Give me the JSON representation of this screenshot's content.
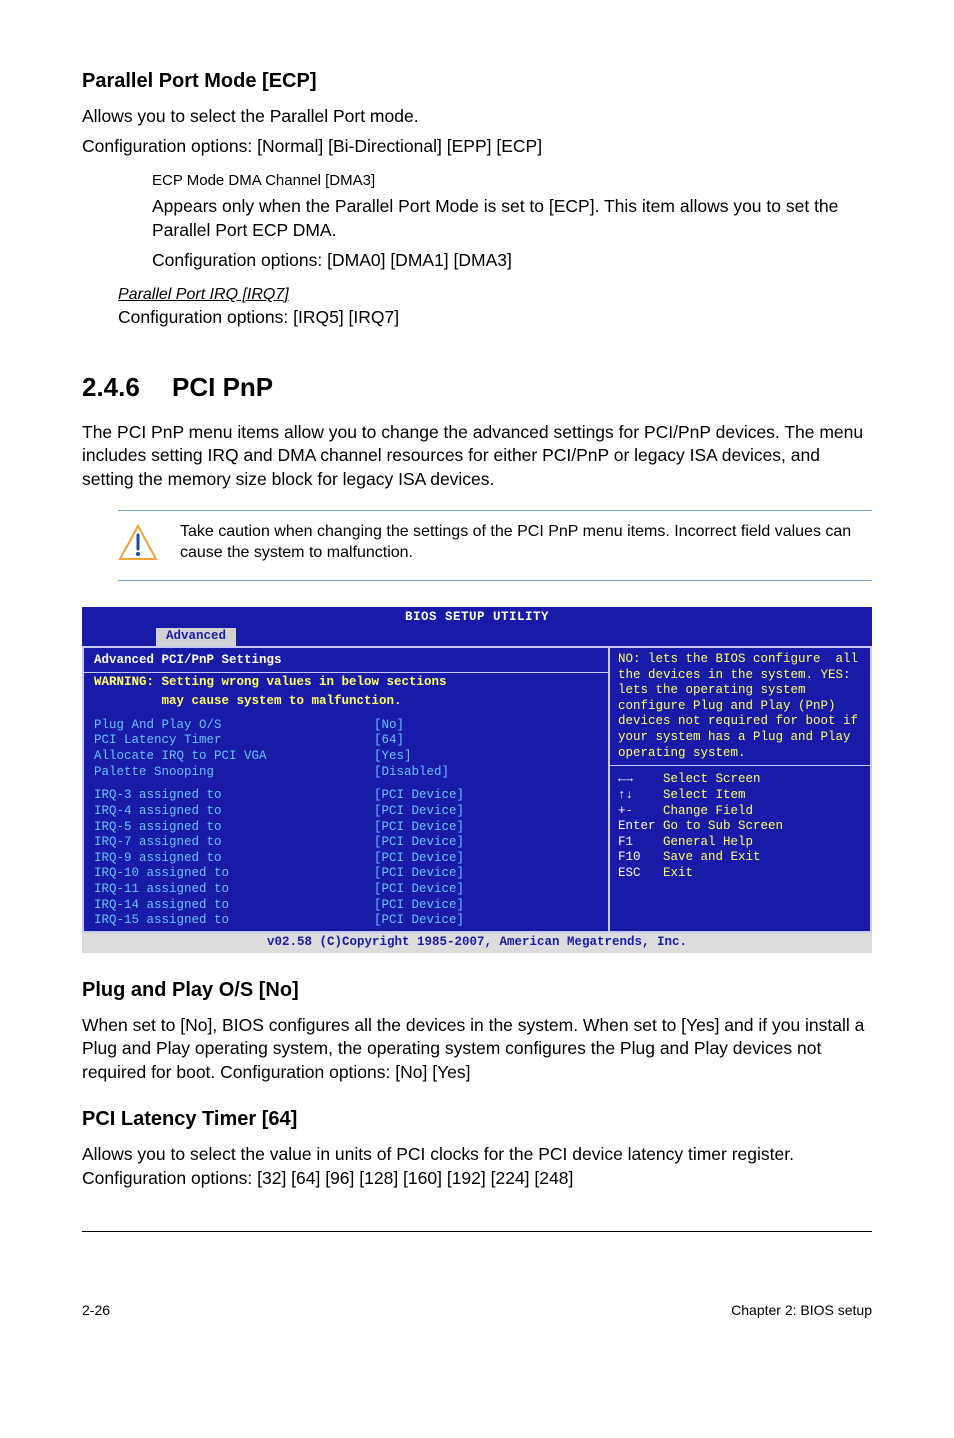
{
  "s1": {
    "heading": "Parallel Port Mode [ECP]",
    "p1": "Allows you to select the Parallel Port  mode.",
    "p2": "Configuration options: [Normal] [Bi-Directional] [EPP] [ECP]",
    "sub_head": "ECP Mode DMA Channel [DMA3]",
    "sub_p1": "Appears only when the Parallel Port Mode is set to [ECP]. This item allows you to set the Parallel Port ECP DMA.",
    "sub_p2": "Configuration options: [DMA0] [DMA1] [DMA3]",
    "irq_head": "Parallel Port IRQ [IRQ7]",
    "irq_p": "Configuration options: [IRQ5] [IRQ7]"
  },
  "s2": {
    "num": "2.4.6",
    "title": "PCI PnP",
    "para": "The PCI PnP menu items allow you to change the advanced settings for PCI/PnP devices. The menu includes setting IRQ and DMA channel resources for either PCI/PnP or legacy ISA devices, and setting the memory size block for legacy ISA devices.",
    "callout": "Take caution when changing the settings of the PCI PnP menu items. Incorrect field values can cause the system to malfunction."
  },
  "bios": {
    "title": "BIOS SETUP UTILITY",
    "tab": "Advanced",
    "panel_title": "Advanced PCI/PnP Settings",
    "warning_l1": "WARNING: Setting wrong values in below sections",
    "warning_l2": "         may cause system to malfunction.",
    "rows_top": [
      {
        "lbl": "Plug And Play O/S",
        "val": "[No]"
      },
      {
        "lbl": "PCI Latency Timer",
        "val": "[64]"
      },
      {
        "lbl": "Allocate IRQ to PCI VGA",
        "val": "[Yes]"
      },
      {
        "lbl": "Palette Snooping",
        "val": "[Disabled]"
      }
    ],
    "rows_irq": [
      {
        "lbl": "IRQ-3 assigned to",
        "val": "[PCI Device]"
      },
      {
        "lbl": "IRQ-4 assigned to",
        "val": "[PCI Device]"
      },
      {
        "lbl": "IRQ-5 assigned to",
        "val": "[PCI Device]"
      },
      {
        "lbl": "IRQ-7 assigned to",
        "val": "[PCI Device]"
      },
      {
        "lbl": "IRQ-9 assigned to",
        "val": "[PCI Device]"
      },
      {
        "lbl": "IRQ-10 assigned to",
        "val": "[PCI Device]"
      },
      {
        "lbl": "IRQ-11 assigned to",
        "val": "[PCI Device]"
      },
      {
        "lbl": "IRQ-14 assigned to",
        "val": "[PCI Device]"
      },
      {
        "lbl": "IRQ-15 assigned to",
        "val": "[PCI Device]"
      }
    ],
    "hint": "NO: lets the BIOS configure  all the devices in the system. YES: lets the operating system configure Plug and Play (PnP) devices not required for boot if your system has a Plug and Play operating system.",
    "keys": [
      {
        "k": "←→",
        "t": "Select Screen"
      },
      {
        "k": "↑↓",
        "t": "Select Item"
      },
      {
        "k": "+-",
        "t": "Change Field"
      },
      {
        "k": "Enter",
        "t": "Go to Sub Screen"
      },
      {
        "k": "F1",
        "t": "General Help"
      },
      {
        "k": "F10",
        "t": "Save and Exit"
      },
      {
        "k": "ESC",
        "t": "Exit"
      }
    ],
    "footer": "v02.58 (C)Copyright 1985-2007, American Megatrends, Inc."
  },
  "s3": {
    "heading": "Plug and Play O/S [No]",
    "para": "When set to [No], BIOS configures all the devices in the system. When set to [Yes] and if you install a Plug and Play operating system, the operating system configures the Plug and Play devices not required for boot. Configuration options: [No] [Yes]"
  },
  "s4": {
    "heading": "PCI Latency Timer [64]",
    "para": "Allows you to select the value in units of PCI clocks for the PCI device latency timer register. Configuration options: [32] [64] [96] [128] [160] [192] [224] [248]"
  },
  "footer": {
    "left": "2-26",
    "right": "Chapter 2: BIOS setup"
  }
}
